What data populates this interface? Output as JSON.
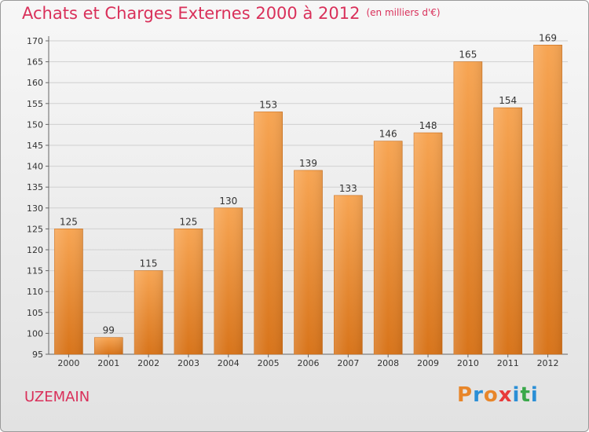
{
  "header": {
    "title": "Achats et Charges Externes 2000 à 2012",
    "unit": "(en milliers d'€)"
  },
  "footer": {
    "commune": "UZEMAIN",
    "logo": "Proxiti"
  },
  "colors": {
    "title": "#d9305a",
    "bar_top": "#f7a553",
    "bar_bottom": "#d8741a",
    "grid": "#d0d0d0",
    "logo_letters": [
      "#e8862a",
      "#2b8fd6",
      "#e8862a",
      "#e83a3a",
      "#2b8fd6",
      "#3aa84a",
      "#2b8fd6"
    ]
  },
  "chart_data": {
    "type": "bar",
    "title": "Achats et Charges Externes 2000 à 2012",
    "subtitle": "(en milliers d'€)",
    "xlabel": "",
    "ylabel": "",
    "categories": [
      "2000",
      "2001",
      "2002",
      "2003",
      "2004",
      "2005",
      "2006",
      "2007",
      "2008",
      "2009",
      "2010",
      "2011",
      "2012"
    ],
    "values": [
      125,
      99,
      115,
      125,
      130,
      153,
      139,
      133,
      146,
      148,
      165,
      154,
      169
    ],
    "ylim": [
      95,
      170
    ],
    "yticks": [
      95,
      100,
      105,
      110,
      115,
      120,
      125,
      130,
      135,
      140,
      145,
      150,
      155,
      160,
      165,
      170
    ],
    "grid": true,
    "data_labels": true
  }
}
